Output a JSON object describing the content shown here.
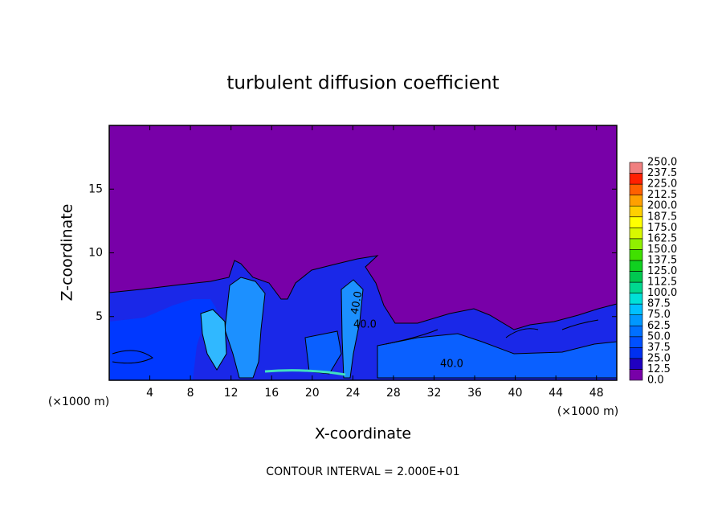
{
  "chart_data": {
    "type": "contour",
    "title": "turbulent diffusion coefficient",
    "xlabel": "X-coordinate",
    "ylabel": "Z-coordinate",
    "x_unit": "(×1000 m)",
    "xlim": [
      0,
      50
    ],
    "xticks": [
      4,
      8,
      12,
      16,
      20,
      24,
      28,
      32,
      36,
      40,
      44,
      48
    ],
    "ylim": [
      0,
      20
    ],
    "yticks": [
      5,
      10,
      15
    ],
    "contour_labels": [
      "40.0",
      "40.0",
      "40.0"
    ],
    "annotation": "CONTOUR INTERVAL = 2.000E+01",
    "colorbar_levels": [
      {
        "value": 0,
        "label": "0.0"
      },
      12.5,
      {
        "value": 25,
        "label": "25.0"
      },
      37.5,
      {
        "value": 50,
        "label": "50.0"
      },
      62.5,
      {
        "value": 75,
        "label": "75.0"
      },
      87.5,
      {
        "value": 100,
        "label": "100.0"
      },
      112.5,
      {
        "value": 125,
        "label": "125.0"
      },
      137.5,
      {
        "value": 150,
        "label": "150.0"
      },
      162.5,
      {
        "value": 175,
        "label": "175.0"
      },
      187.5,
      {
        "value": 200,
        "label": "200.0"
      },
      212.5,
      {
        "value": 225,
        "label": "225.0"
      },
      237.5,
      {
        "value": 250,
        "label": "250.0"
      }
    ],
    "colorbar_colors": [
      "#7800a8",
      "#2000c0",
      "#0030f0",
      "#0050ff",
      "#0070ff",
      "#0098ff",
      "#00c0ff",
      "#00e0d8",
      "#00d890",
      "#00c850",
      "#10d020",
      "#40e000",
      "#90f000",
      "#d8f800",
      "#ffff00",
      "#ffd000",
      "#ffa000",
      "#ff6000",
      "#ff2000",
      "#f08080"
    ]
  }
}
